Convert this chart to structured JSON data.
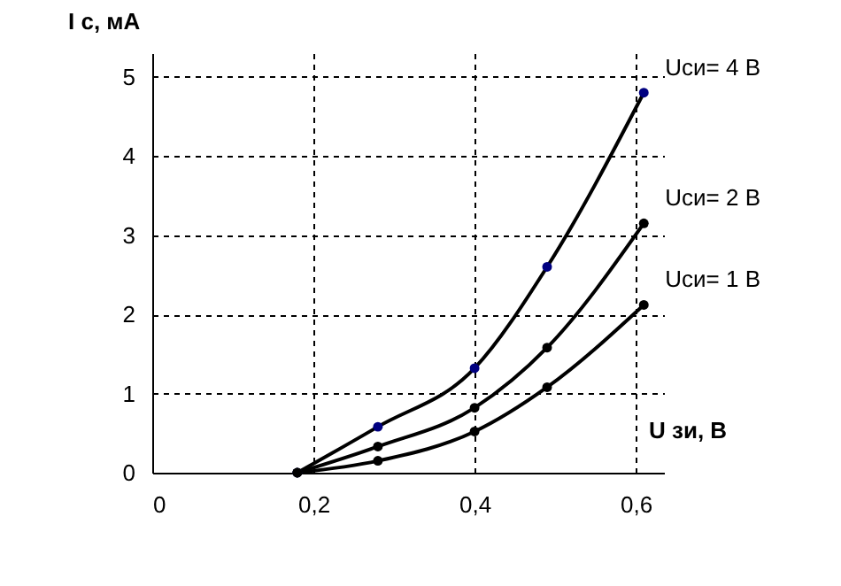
{
  "chart_data": {
    "type": "line",
    "xlabel": "U зи, В",
    "ylabel": "I с, мА",
    "x": [
      0.18,
      0.28,
      0.4,
      0.49,
      0.61
    ],
    "series": [
      {
        "name": "Uси= 4 В",
        "color": "#000080",
        "values": [
          0,
          0.58,
          1.32,
          2.6,
          4.8
        ]
      },
      {
        "name": "Uси= 2 В",
        "color": "#000000",
        "values": [
          0,
          0.33,
          0.82,
          1.58,
          3.15
        ]
      },
      {
        "name": "Uси= 1 В",
        "color": "#000000",
        "values": [
          0,
          0.15,
          0.52,
          1.08,
          2.12
        ]
      }
    ],
    "xlim": [
      0,
      0.635
    ],
    "ylim": [
      0,
      5.3
    ],
    "xticks": [
      0,
      {
        "value": 0.2,
        "label": "0,2"
      },
      {
        "value": 0.4,
        "label": "0,4"
      },
      {
        "value": 0.6,
        "label": "0,6"
      }
    ],
    "yticks": [
      0,
      1,
      2,
      3,
      4,
      5
    ],
    "grid": true,
    "marker": "circle",
    "line_style": "solid"
  }
}
